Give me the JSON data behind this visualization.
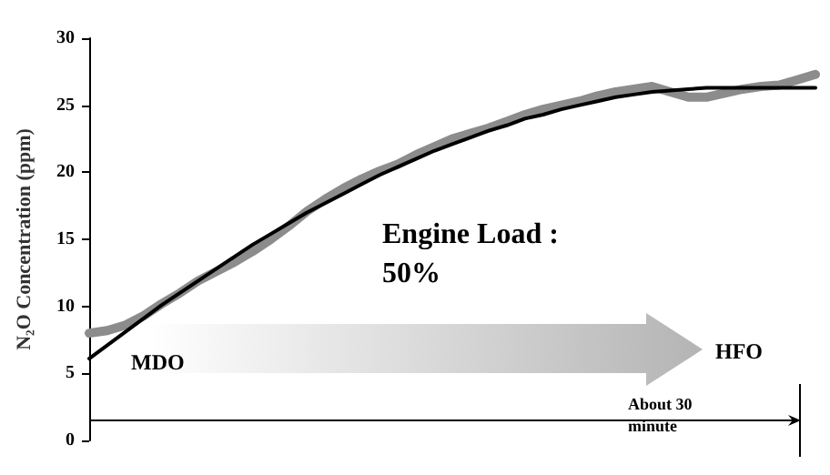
{
  "chart_data": {
    "type": "line",
    "ylabel": "N₂O Concentration (ppm)",
    "categories": [
      null,
      null,
      null,
      null,
      null,
      null,
      null,
      null,
      null,
      null,
      null,
      null,
      null,
      null,
      null,
      null,
      null,
      null,
      null,
      null,
      null,
      null,
      null,
      null,
      null,
      null,
      null,
      null,
      null,
      null,
      null,
      null,
      null,
      null,
      null,
      null,
      null,
      null,
      null,
      null,
      null
    ],
    "series": [
      {
        "color": "#8c8c8c",
        "values": [
          8.0,
          8.2,
          8.6,
          9.3,
          10.2,
          11.0,
          11.9,
          12.6,
          13.3,
          14.1,
          15.0,
          16.0,
          17.1,
          18.0,
          18.8,
          19.5,
          20.1,
          20.6,
          21.3,
          21.9,
          22.5,
          22.9,
          23.3,
          23.8,
          24.3,
          24.7,
          25.0,
          25.3,
          25.7,
          26.0,
          26.2,
          26.4,
          26.0,
          25.6,
          25.6,
          25.9,
          26.2,
          26.4,
          26.5,
          26.9,
          27.3
        ]
      },
      {
        "color": "#000000",
        "values": [
          6.1,
          7.1,
          8.1,
          9.1,
          10.1,
          11.0,
          11.9,
          12.8,
          13.7,
          14.6,
          15.4,
          16.2,
          17.0,
          17.7,
          18.4,
          19.1,
          19.8,
          20.4,
          21.0,
          21.6,
          22.1,
          22.6,
          23.1,
          23.5,
          24.0,
          24.3,
          24.7,
          25.0,
          25.3,
          25.6,
          25.8,
          26.0,
          26.1,
          26.2,
          26.3,
          26.3,
          26.3,
          26.3,
          26.3,
          26.3,
          26.3
        ]
      }
    ],
    "ylim": [
      0,
      30
    ],
    "yticks": [
      0,
      5,
      10,
      15,
      20,
      25,
      30
    ],
    "tick_labels": "y",
    "grid": false,
    "legend": false,
    "marker": "none",
    "line_style": "solid",
    "annotations": [
      "Engine Load : 50%",
      "MDO",
      "HFO",
      "About 30 minute"
    ]
  }
}
